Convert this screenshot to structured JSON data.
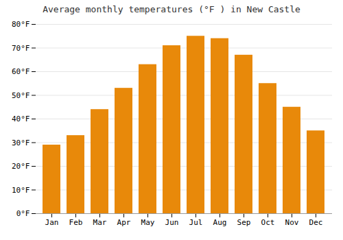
{
  "chart_data": {
    "type": "bar",
    "title": "Average monthly temperatures (°F ) in New Castle",
    "categories": [
      "Jan",
      "Feb",
      "Mar",
      "Apr",
      "May",
      "Jun",
      "Jul",
      "Aug",
      "Sep",
      "Oct",
      "Nov",
      "Dec"
    ],
    "values": [
      29,
      33,
      44,
      53,
      63,
      71,
      75,
      74,
      67,
      55,
      45,
      35
    ],
    "color": "#E8890A",
    "ylim": [
      0,
      80
    ],
    "yticks": [
      {
        "value": 0,
        "label": "0°F"
      },
      {
        "value": 10,
        "label": "10°F"
      },
      {
        "value": 20,
        "label": "20°F"
      },
      {
        "value": 30,
        "label": "30°F"
      },
      {
        "value": 40,
        "label": "40°F"
      },
      {
        "value": 50,
        "label": "50°F"
      },
      {
        "value": 60,
        "label": "60°F"
      },
      {
        "value": 70,
        "label": "70°F"
      },
      {
        "value": 80,
        "label": "80°F"
      }
    ],
    "grid": true
  }
}
